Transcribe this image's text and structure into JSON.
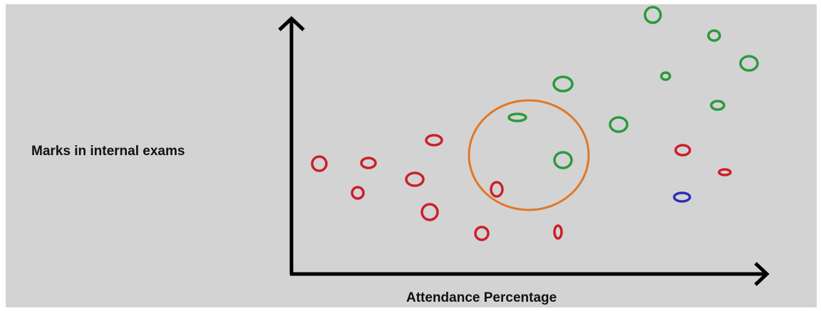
{
  "labels": {
    "y_axis": "Marks in internal exams",
    "x_axis": "Attendance Percentage"
  },
  "colors": {
    "class_red": "#cc1f2a",
    "class_green": "#2b9a3c",
    "query_point": "#2a2fb8",
    "neighborhood_circle": "#e07826",
    "axes": "#000000",
    "background": "#d3d3d3"
  },
  "points": [
    {
      "class": "red"
    },
    {
      "class": "red"
    },
    {
      "class": "red"
    },
    {
      "class": "red"
    },
    {
      "class": "red"
    },
    {
      "class": "red"
    },
    {
      "class": "red"
    },
    {
      "class": "red"
    },
    {
      "class": "red"
    },
    {
      "class": "red"
    },
    {
      "class": "red"
    },
    {
      "class": "green"
    },
    {
      "class": "green"
    },
    {
      "class": "green"
    },
    {
      "class": "green"
    },
    {
      "class": "green"
    },
    {
      "class": "green"
    },
    {
      "class": "green"
    },
    {
      "class": "green"
    },
    {
      "class": "green"
    },
    {
      "class": "query"
    }
  ]
}
